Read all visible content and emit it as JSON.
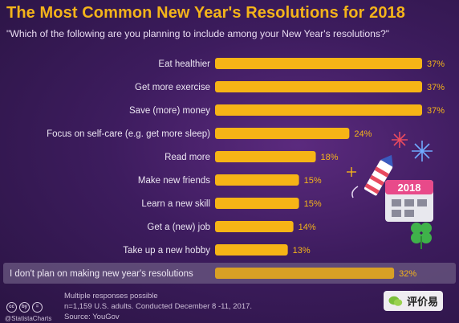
{
  "header": {
    "title": "The Most Common New Year's Resolutions for 2018",
    "subtitle": "\"Which of the following are you planning to include among your New Year's resolutions?\""
  },
  "colors": {
    "bar": "#f6b416",
    "bar_muted": "#d8a025",
    "accent": "#f4b41a",
    "background": "#3d1c5e",
    "highlight_row": "#6b5a82"
  },
  "chart_data": {
    "type": "bar",
    "orientation": "horizontal",
    "title": "The Most Common New Year's Resolutions for 2018",
    "subtitle": "\"Which of the following are you planning to include among your New Year's resolutions?\"",
    "categories": [
      "Eat healthier",
      "Get more exercise",
      "Save (more) money",
      "Focus on self-care (e.g. get more sleep)",
      "Read more",
      "Make new friends",
      "Learn a new skill",
      "Get a (new) job",
      "Take up a new hobby",
      "I don't plan on making new year's resolutions"
    ],
    "values": [
      37,
      37,
      37,
      24,
      18,
      15,
      15,
      14,
      13,
      32
    ],
    "value_labels": [
      "37%",
      "37%",
      "37%",
      "24%",
      "18%",
      "15%",
      "15%",
      "14%",
      "13%",
      "32%"
    ],
    "unit": "%",
    "highlighted_category": "I don't plan on making new year's resolutions",
    "xlim": [
      0,
      37
    ],
    "grid": false,
    "legend": "none"
  },
  "decoration": {
    "calendar_label": "2018"
  },
  "footer": {
    "note": "Multiple responses possible",
    "sample": "n=1,159 U.S. adults. Conducted December 8 -11, 2017.",
    "source": "Source: YouGov",
    "handle": "@StatistaCharts",
    "license_icons": [
      "cc",
      "by",
      "="
    ]
  },
  "watermark": {
    "text": "评价易"
  }
}
